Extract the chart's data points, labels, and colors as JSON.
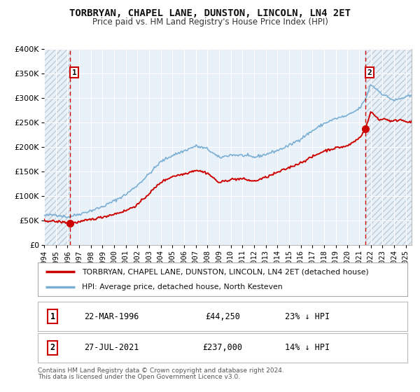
{
  "title": "TORBRYAN, CHAPEL LANE, DUNSTON, LINCOLN, LN4 2ET",
  "subtitle": "Price paid vs. HM Land Registry's House Price Index (HPI)",
  "ylim": [
    0,
    400000
  ],
  "xlim": [
    1994,
    2025.5
  ],
  "yticks": [
    0,
    50000,
    100000,
    150000,
    200000,
    250000,
    300000,
    350000,
    400000
  ],
  "ytick_labels": [
    "£0",
    "£50K",
    "£100K",
    "£150K",
    "£200K",
    "£250K",
    "£300K",
    "£350K",
    "£400K"
  ],
  "xticks": [
    1994,
    1995,
    1996,
    1997,
    1998,
    1999,
    2000,
    2001,
    2002,
    2003,
    2004,
    2005,
    2006,
    2007,
    2008,
    2009,
    2010,
    2011,
    2012,
    2013,
    2014,
    2015,
    2016,
    2017,
    2018,
    2019,
    2020,
    2021,
    2022,
    2023,
    2024,
    2025
  ],
  "sale1_x": 1996.22,
  "sale1_y": 44250,
  "sale1_label": "1",
  "sale1_date": "22-MAR-1996",
  "sale1_price": "£44,250",
  "sale1_hpi": "23% ↓ HPI",
  "sale2_x": 2021.56,
  "sale2_y": 237000,
  "sale2_label": "2",
  "sale2_date": "27-JUL-2021",
  "sale2_price": "£237,000",
  "sale2_hpi": "14% ↓ HPI",
  "property_color": "#cc0000",
  "hpi_color": "#7bafd4",
  "fig_bg": "#ffffff",
  "plot_bg": "#e8f0f8",
  "grid_color": "#ffffff",
  "hatch_color": "#c0ccd8",
  "dashed_line_color": "#cc0000",
  "legend_label1": "TORBRYAN, CHAPEL LANE, DUNSTON, LINCOLN, LN4 2ET (detached house)",
  "legend_label2": "HPI: Average price, detached house, North Kesteven",
  "footer1": "Contains HM Land Registry data © Crown copyright and database right 2024.",
  "footer2": "This data is licensed under the Open Government Licence v3.0."
}
